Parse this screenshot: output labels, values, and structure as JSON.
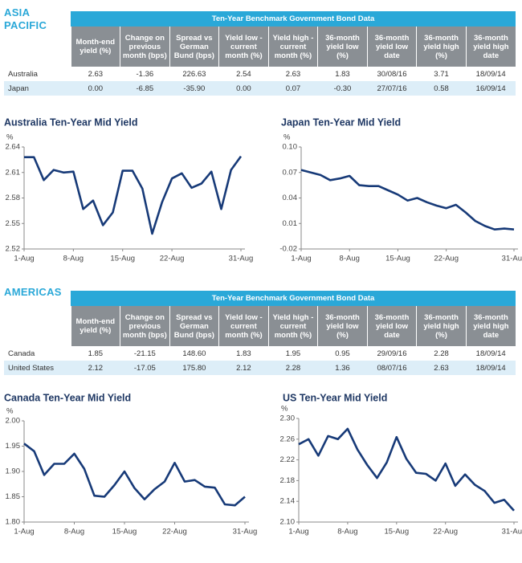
{
  "sections": [
    {
      "title": "ASIA PACIFIC",
      "table": {
        "caption": "Ten-Year Benchmark Government Bond Data",
        "columns": [
          "Month-end yield (%)",
          "Change on previous month (bps)",
          "Spread vs German Bund (bps)",
          "Yield low - current month (%)",
          "Yield high - current month (%)",
          "36-month yield low (%)",
          "36-month yield low date",
          "36-month yield high (%)",
          "36-month yield high date"
        ],
        "rows": [
          [
            "Australia",
            "2.63",
            "-1.36",
            "226.63",
            "2.54",
            "2.63",
            "1.83",
            "30/08/16",
            "3.71",
            "18/09/14"
          ],
          [
            "Japan",
            "0.00",
            "-6.85",
            "-35.90",
            "0.00",
            "0.07",
            "-0.30",
            "27/07/16",
            "0.58",
            "16/09/14"
          ]
        ]
      }
    },
    {
      "title": "AMERICAS",
      "table": {
        "caption": "Ten-Year Benchmark Government Bond Data",
        "columns": [
          "Month-end yield (%)",
          "Change on previous month (bps)",
          "Spread vs German Bund (bps)",
          "Yield low - current month (%)",
          "Yield high - current month (%)",
          "36-month yield low (%)",
          "36-month yield low date",
          "36-month yield high (%)",
          "36-month yield high date"
        ],
        "rows": [
          [
            "Canada",
            "1.85",
            "-21.15",
            "148.60",
            "1.83",
            "1.95",
            "0.95",
            "29/09/16",
            "2.28",
            "18/09/14"
          ],
          [
            "United States",
            "2.12",
            "-17.05",
            "175.80",
            "2.12",
            "2.28",
            "1.36",
            "08/07/16",
            "2.63",
            "18/09/14"
          ]
        ]
      }
    }
  ],
  "chart_data": [
    {
      "type": "line",
      "title": "Australia Ten-Year Mid Yield",
      "y_label": "%",
      "categories": [
        "1-Aug",
        null,
        null,
        null,
        null,
        "8-Aug",
        null,
        null,
        null,
        null,
        "15-Aug",
        null,
        null,
        null,
        null,
        "22-Aug",
        null,
        null,
        null,
        null,
        null,
        null,
        "31-Aug"
      ],
      "series": [
        {
          "color": "#173a78",
          "values": [
            2.628,
            2.628,
            2.601,
            2.613,
            2.61,
            2.611,
            2.567,
            2.577,
            2.548,
            2.563,
            2.612,
            2.612,
            2.591,
            2.538,
            2.575,
            2.603,
            2.609,
            2.592,
            2.597,
            2.611,
            2.567,
            2.613,
            2.629
          ]
        }
      ],
      "ylim": [
        2.52,
        2.64
      ],
      "yticks": [
        2.52,
        2.55,
        2.58,
        2.61,
        2.64
      ]
    },
    {
      "type": "line",
      "title": "Japan Ten-Year Mid Yield",
      "y_label": "%",
      "categories": [
        "1-Aug",
        null,
        null,
        null,
        null,
        "8-Aug",
        null,
        null,
        null,
        null,
        "15-Aug",
        null,
        null,
        null,
        null,
        "22-Aug",
        null,
        null,
        null,
        null,
        null,
        null,
        "31-Aug"
      ],
      "series": [
        {
          "color": "#173a78",
          "values": [
            0.073,
            0.07,
            0.067,
            0.061,
            0.063,
            0.066,
            0.055,
            0.054,
            0.054,
            0.049,
            0.044,
            0.037,
            0.04,
            0.035,
            0.031,
            0.028,
            0.032,
            0.023,
            0.013,
            0.007,
            0.003,
            0.004,
            0.003
          ]
        }
      ],
      "ylim": [
        -0.02,
        0.1
      ],
      "yticks": [
        -0.02,
        0.01,
        0.04,
        0.07,
        {
          "value": 0.1,
          "label": "0.10"
        }
      ]
    },
    {
      "type": "line",
      "title": "Canada Ten-Year Mid Yield",
      "y_label": "%",
      "categories": [
        "1-Aug",
        null,
        null,
        null,
        null,
        "8-Aug",
        null,
        null,
        null,
        null,
        "15-Aug",
        null,
        null,
        null,
        null,
        "22-Aug",
        null,
        null,
        null,
        null,
        null,
        null,
        "31-Aug"
      ],
      "series": [
        {
          "color": "#173a78",
          "values": [
            1.955,
            1.94,
            1.893,
            1.915,
            1.915,
            1.935,
            1.905,
            1.852,
            1.85,
            1.873,
            1.9,
            1.867,
            1.845,
            1.865,
            1.88,
            1.917,
            1.88,
            1.883,
            1.87,
            1.868,
            1.835,
            1.833,
            1.85
          ]
        }
      ],
      "ylim": [
        1.8,
        2.0
      ],
      "yticks": [
        {
          "value": 1.8,
          "label": "1.80"
        },
        1.85,
        {
          "value": 1.9,
          "label": "1.90"
        },
        1.95,
        {
          "value": 2.0,
          "label": "2.00"
        }
      ]
    },
    {
      "type": "line",
      "title": "US Ten-Year Mid Yield",
      "y_label": "%",
      "categories": [
        "1-Aug",
        null,
        null,
        null,
        null,
        "8-Aug",
        null,
        null,
        null,
        null,
        "15-Aug",
        null,
        null,
        null,
        null,
        "22-Aug",
        null,
        null,
        null,
        null,
        null,
        null,
        "31-Aug"
      ],
      "series": [
        {
          "color": "#173a78",
          "values": [
            2.25,
            2.26,
            2.228,
            2.266,
            2.26,
            2.28,
            2.24,
            2.21,
            2.185,
            2.215,
            2.264,
            2.222,
            2.195,
            2.193,
            2.18,
            2.213,
            2.17,
            2.192,
            2.172,
            2.16,
            2.137,
            2.143,
            2.122
          ]
        }
      ],
      "ylim": [
        2.1,
        2.3
      ],
      "yticks": [
        {
          "value": 2.1,
          "label": "2.10"
        },
        2.14,
        2.18,
        2.22,
        2.26,
        {
          "value": 2.3,
          "label": "2.30"
        }
      ]
    }
  ]
}
